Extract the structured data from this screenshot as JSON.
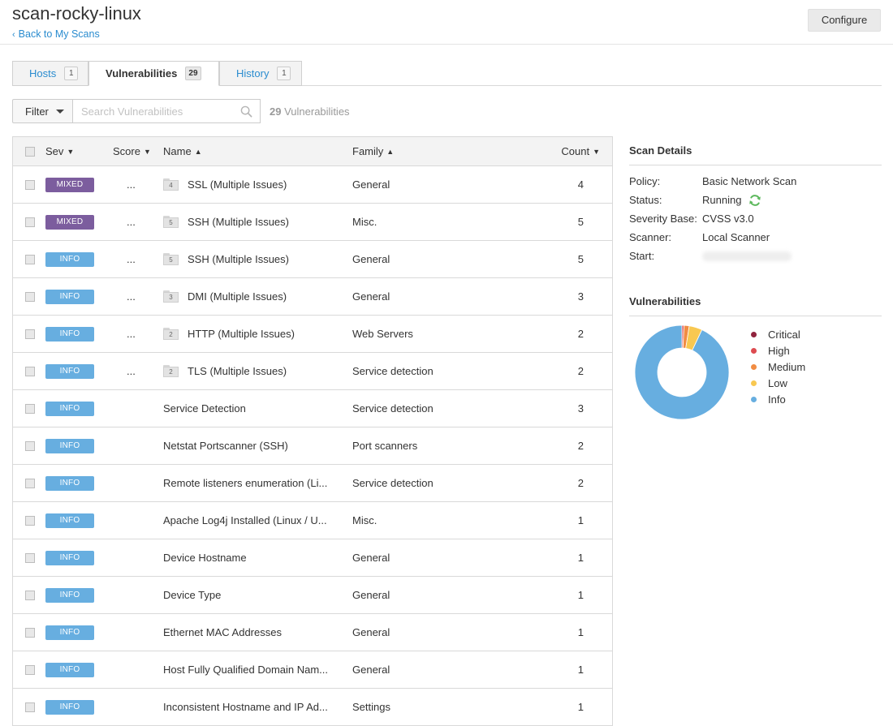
{
  "header": {
    "title": "scan-rocky-linux",
    "back_label": "Back to My Scans",
    "configure_label": "Configure"
  },
  "tabs": [
    {
      "label": "Hosts",
      "count": "1",
      "active": false
    },
    {
      "label": "Vulnerabilities",
      "count": "29",
      "active": true
    },
    {
      "label": "History",
      "count": "1",
      "active": false
    }
  ],
  "filterbar": {
    "filter_label": "Filter",
    "search_placeholder": "Search Vulnerabilities",
    "count_number": "29",
    "count_suffix": "Vulnerabilities"
  },
  "table": {
    "headers": {
      "sev": "Sev",
      "score": "Score",
      "name": "Name",
      "family": "Family",
      "count": "Count"
    },
    "rows": [
      {
        "sev": "MIXED",
        "score": "...",
        "group": "4",
        "name": "SSL (Multiple Issues)",
        "family": "General",
        "count": "4"
      },
      {
        "sev": "MIXED",
        "score": "...",
        "group": "5",
        "name": "SSH (Multiple Issues)",
        "family": "Misc.",
        "count": "5"
      },
      {
        "sev": "INFO",
        "score": "...",
        "group": "5",
        "name": "SSH (Multiple Issues)",
        "family": "General",
        "count": "5"
      },
      {
        "sev": "INFO",
        "score": "...",
        "group": "3",
        "name": "DMI (Multiple Issues)",
        "family": "General",
        "count": "3"
      },
      {
        "sev": "INFO",
        "score": "...",
        "group": "2",
        "name": "HTTP (Multiple Issues)",
        "family": "Web Servers",
        "count": "2"
      },
      {
        "sev": "INFO",
        "score": "...",
        "group": "2",
        "name": "TLS (Multiple Issues)",
        "family": "Service detection",
        "count": "2"
      },
      {
        "sev": "INFO",
        "score": "",
        "group": "",
        "name": "Service Detection",
        "family": "Service detection",
        "count": "3"
      },
      {
        "sev": "INFO",
        "score": "",
        "group": "",
        "name": "Netstat Portscanner (SSH)",
        "family": "Port scanners",
        "count": "2"
      },
      {
        "sev": "INFO",
        "score": "",
        "group": "",
        "name": "Remote listeners enumeration (Li...",
        "family": "Service detection",
        "count": "2"
      },
      {
        "sev": "INFO",
        "score": "",
        "group": "",
        "name": "Apache Log4j Installed (Linux / U...",
        "family": "Misc.",
        "count": "1"
      },
      {
        "sev": "INFO",
        "score": "",
        "group": "",
        "name": "Device Hostname",
        "family": "General",
        "count": "1"
      },
      {
        "sev": "INFO",
        "score": "",
        "group": "",
        "name": "Device Type",
        "family": "General",
        "count": "1"
      },
      {
        "sev": "INFO",
        "score": "",
        "group": "",
        "name": "Ethernet MAC Addresses",
        "family": "General",
        "count": "1"
      },
      {
        "sev": "INFO",
        "score": "",
        "group": "",
        "name": "Host Fully Qualified Domain Nam...",
        "family": "General",
        "count": "1"
      },
      {
        "sev": "INFO",
        "score": "",
        "group": "",
        "name": "Inconsistent Hostname and IP Ad...",
        "family": "Settings",
        "count": "1"
      }
    ]
  },
  "severity_colors": {
    "MIXED": "#7c5d9e",
    "INFO": "#67aee0"
  },
  "scan_details": {
    "title": "Scan Details",
    "fields": [
      {
        "key": "Policy:",
        "value": "Basic Network Scan"
      },
      {
        "key": "Status:",
        "value": "Running",
        "icon": "refresh-icon"
      },
      {
        "key": "Severity Base:",
        "value": "CVSS v3.0"
      },
      {
        "key": "Scanner:",
        "value": "Local Scanner"
      },
      {
        "key": "Start:",
        "value": ""
      }
    ]
  },
  "vulnerabilities_panel": {
    "title": "Vulnerabilities",
    "legend": [
      {
        "label": "Critical",
        "color": "#91243e",
        "share": 0.0
      },
      {
        "label": "High",
        "color": "#dd4b50",
        "share": 0.007
      },
      {
        "label": "Medium",
        "color": "#f18c43",
        "share": 0.018
      },
      {
        "label": "Low",
        "color": "#f8c851",
        "share": 0.045
      },
      {
        "label": "Info",
        "color": "#67aee0",
        "share": 0.93
      }
    ]
  }
}
